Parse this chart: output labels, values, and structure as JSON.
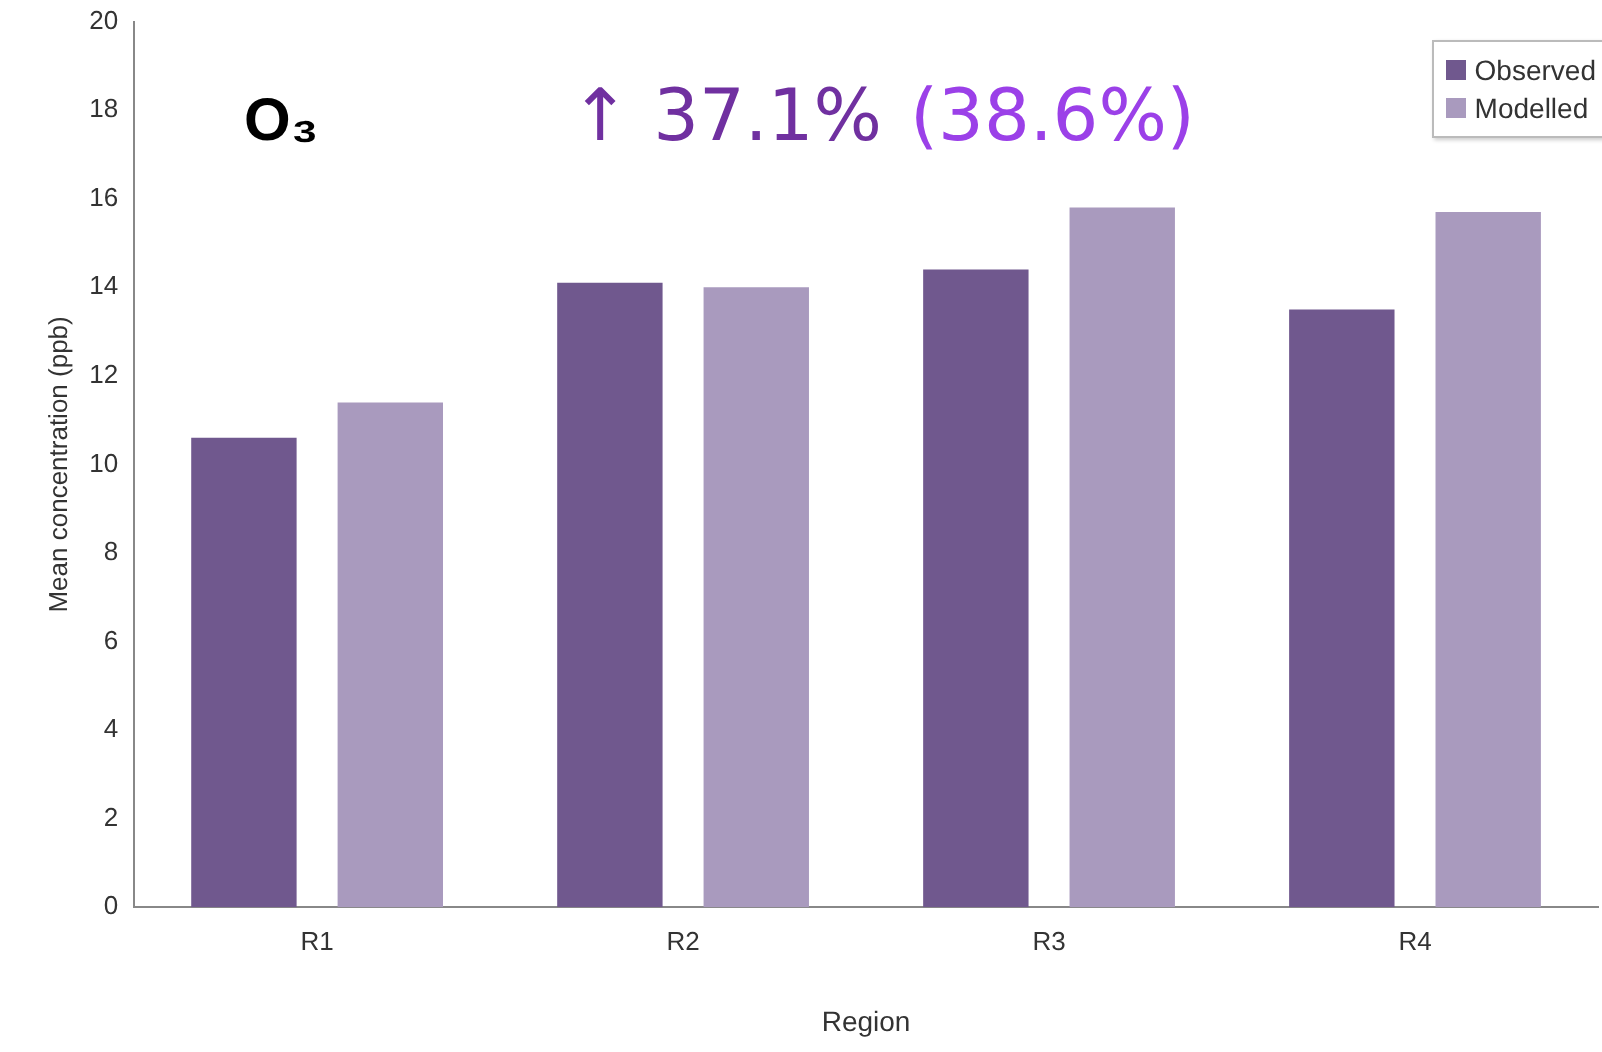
{
  "chart_data": {
    "type": "bar",
    "xlabel": "Region",
    "ylabel": "Mean concentration (ppb)",
    "categories": [
      "R1",
      "R2",
      "R3",
      "R4"
    ],
    "series": [
      {
        "name": "Observed",
        "color": "#70588e",
        "values": [
          10.6,
          14.1,
          14.4,
          13.5
        ]
      },
      {
        "name": "Modelled",
        "color": "#a99abe",
        "values": [
          11.4,
          14.0,
          15.8,
          15.7
        ]
      }
    ],
    "ylim": [
      0,
      20
    ],
    "yticks": [
      0,
      2,
      4,
      6,
      8,
      10,
      12,
      14,
      16,
      18,
      20
    ],
    "grid": false,
    "legend": "top right",
    "annotations": [
      "O₃",
      "↑ 37.1%",
      "(38.6%)"
    ]
  }
}
